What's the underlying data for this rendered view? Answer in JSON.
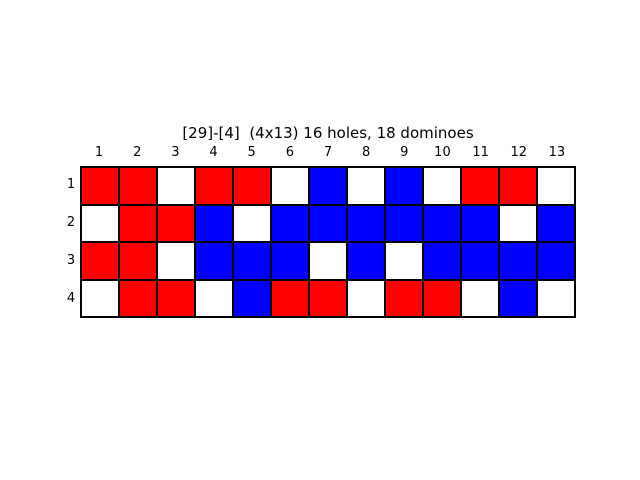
{
  "title": "[29]-[4]  (4x13) 16 holes, 18 dominoes",
  "colors": {
    "R": "#ff0000",
    "B": "#0000ff",
    "W": "#ffffff"
  },
  "columns": [
    "1",
    "2",
    "3",
    "4",
    "5",
    "6",
    "7",
    "8",
    "9",
    "10",
    "11",
    "12",
    "13"
  ],
  "rows": [
    "1",
    "2",
    "3",
    "4"
  ],
  "board": [
    [
      "R",
      "R",
      "W",
      "R",
      "R",
      "W",
      "B",
      "W",
      "B",
      "W",
      "R",
      "R",
      "W"
    ],
    [
      "W",
      "R",
      "R",
      "B",
      "W",
      "B",
      "B",
      "B",
      "B",
      "B",
      "B",
      "W",
      "B"
    ],
    [
      "R",
      "R",
      "W",
      "B",
      "B",
      "B",
      "W",
      "B",
      "W",
      "B",
      "B",
      "B",
      "B"
    ],
    [
      "W",
      "R",
      "R",
      "W",
      "B",
      "R",
      "R",
      "W",
      "R",
      "R",
      "W",
      "B",
      "W"
    ]
  ]
}
